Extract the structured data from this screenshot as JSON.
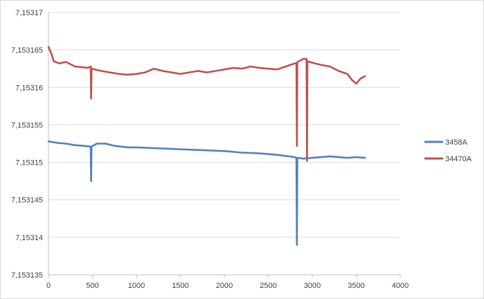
{
  "chart_data": {
    "type": "line",
    "title": "",
    "xlabel": "",
    "ylabel": "",
    "xlim": [
      0,
      4000
    ],
    "ylim": [
      7.153135,
      7.15317
    ],
    "x_ticks": [
      0,
      500,
      1000,
      1500,
      2000,
      2500,
      3000,
      3500,
      4000
    ],
    "x_tick_labels": [
      "0",
      "500",
      "1000",
      "1500",
      "2000",
      "2500",
      "3000",
      "3500",
      "4000"
    ],
    "y_ticks": [
      7.153135,
      7.15314,
      7.153145,
      7.15315,
      7.153155,
      7.15316,
      7.153165,
      7.15317
    ],
    "y_tick_labels": [
      "7,153135",
      "7,15314",
      "7,153145",
      "7,15315",
      "7,153155",
      "7,15316",
      "7,153165",
      "7,15317"
    ],
    "grid": "horizontal",
    "legend_position": "right",
    "series": [
      {
        "name": "3458A",
        "color": "#4f81bd",
        "points": [
          [
            0,
            7.1531528
          ],
          [
            100,
            7.1531526
          ],
          [
            200,
            7.1531525
          ],
          [
            300,
            7.1531523
          ],
          [
            400,
            7.1531522
          ],
          [
            480,
            7.1531521
          ],
          [
            485,
            7.1531475
          ],
          [
            490,
            7.1531521
          ],
          [
            550,
            7.1531525
          ],
          [
            650,
            7.1531525
          ],
          [
            750,
            7.1531522
          ],
          [
            900,
            7.153152
          ],
          [
            1000,
            7.153152
          ],
          [
            1200,
            7.1531519
          ],
          [
            1400,
            7.1531518
          ],
          [
            1600,
            7.1531517
          ],
          [
            1800,
            7.1531516
          ],
          [
            2000,
            7.1531515
          ],
          [
            2200,
            7.1531513
          ],
          [
            2400,
            7.1531512
          ],
          [
            2600,
            7.153151
          ],
          [
            2800,
            7.1531507
          ],
          [
            2820,
            7.1531506
          ],
          [
            2825,
            7.153139
          ],
          [
            2830,
            7.1531506
          ],
          [
            2900,
            7.1531505
          ],
          [
            3000,
            7.1531506
          ],
          [
            3200,
            7.1531508
          ],
          [
            3400,
            7.1531506
          ],
          [
            3500,
            7.1531507
          ],
          [
            3600,
            7.1531506
          ]
        ]
      },
      {
        "name": "34470A",
        "color": "#c0504d",
        "points": [
          [
            0,
            7.1531654
          ],
          [
            30,
            7.1531646
          ],
          [
            60,
            7.1531635
          ],
          [
            120,
            7.1531632
          ],
          [
            200,
            7.1531634
          ],
          [
            300,
            7.1531628
          ],
          [
            450,
            7.1531626
          ],
          [
            480,
            7.1531628
          ],
          [
            485,
            7.1531585
          ],
          [
            490,
            7.1531625
          ],
          [
            600,
            7.1531622
          ],
          [
            700,
            7.153162
          ],
          [
            800,
            7.1531618
          ],
          [
            900,
            7.1531617
          ],
          [
            1000,
            7.1531618
          ],
          [
            1100,
            7.153162
          ],
          [
            1200,
            7.1531625
          ],
          [
            1300,
            7.1531622
          ],
          [
            1400,
            7.153162
          ],
          [
            1500,
            7.1531618
          ],
          [
            1600,
            7.153162
          ],
          [
            1700,
            7.1531622
          ],
          [
            1800,
            7.153162
          ],
          [
            1900,
            7.1531622
          ],
          [
            2000,
            7.1531624
          ],
          [
            2100,
            7.1531626
          ],
          [
            2200,
            7.1531625
          ],
          [
            2300,
            7.1531628
          ],
          [
            2400,
            7.1531626
          ],
          [
            2500,
            7.1531625
          ],
          [
            2600,
            7.1531624
          ],
          [
            2700,
            7.1531628
          ],
          [
            2800,
            7.1531632
          ],
          [
            2820,
            7.1531632
          ],
          [
            2825,
            7.1531522
          ],
          [
            2830,
            7.1531634
          ],
          [
            2900,
            7.1531638
          ],
          [
            2935,
            7.1531638
          ],
          [
            2940,
            7.1531502
          ],
          [
            2945,
            7.1531635
          ],
          [
            3000,
            7.1531633
          ],
          [
            3100,
            7.153163
          ],
          [
            3200,
            7.1531628
          ],
          [
            3300,
            7.1531622
          ],
          [
            3400,
            7.1531618
          ],
          [
            3450,
            7.153161
          ],
          [
            3500,
            7.1531605
          ],
          [
            3550,
            7.1531612
          ],
          [
            3600,
            7.1531615
          ]
        ]
      }
    ]
  }
}
